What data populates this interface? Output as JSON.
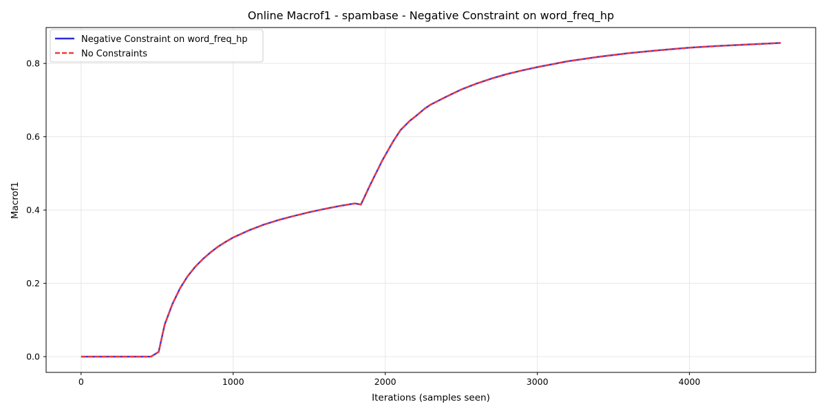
{
  "chart_data": {
    "type": "line",
    "title": "Online Macrof1 - spambase - Negative Constraint on word_freq_hp",
    "xlabel": "Iterations (samples seen)",
    "ylabel": "Macrof1",
    "xlim": [
      -230,
      4830
    ],
    "ylim": [
      -0.043,
      0.898
    ],
    "xticks": [
      0,
      1000,
      2000,
      3000,
      4000
    ],
    "xtick_labels": [
      "0",
      "1000",
      "2000",
      "3000",
      "4000"
    ],
    "yticks": [
      0.0,
      0.2,
      0.4,
      0.6,
      0.8
    ],
    "ytick_labels": [
      "0.0",
      "0.2",
      "0.4",
      "0.6",
      "0.8"
    ],
    "grid": true,
    "legend_position": "top-left",
    "x": [
      0,
      50,
      100,
      150,
      200,
      250,
      300,
      350,
      400,
      460,
      510,
      550,
      600,
      650,
      700,
      750,
      800,
      850,
      900,
      950,
      1000,
      1100,
      1200,
      1300,
      1400,
      1500,
      1600,
      1700,
      1800,
      1840,
      1900,
      1980,
      2050,
      2100,
      2160,
      2200,
      2260,
      2300,
      2400,
      2500,
      2600,
      2700,
      2800,
      2900,
      3000,
      3200,
      3400,
      3600,
      3800,
      4000,
      4200,
      4400,
      4600
    ],
    "series": [
      {
        "name": "Negative Constraint on word_freq_hp",
        "color": "#2c2cdc",
        "style": "solid",
        "values": [
          0.0,
          0.0,
          0.0,
          0.0,
          0.0,
          0.0,
          0.0,
          0.0,
          0.0,
          0.0,
          0.013,
          0.088,
          0.143,
          0.186,
          0.219,
          0.245,
          0.266,
          0.284,
          0.3,
          0.313,
          0.325,
          0.344,
          0.36,
          0.373,
          0.384,
          0.394,
          0.403,
          0.411,
          0.418,
          0.415,
          0.468,
          0.535,
          0.586,
          0.618,
          0.643,
          0.656,
          0.677,
          0.688,
          0.709,
          0.729,
          0.745,
          0.759,
          0.771,
          0.781,
          0.79,
          0.806,
          0.818,
          0.828,
          0.836,
          0.843,
          0.848,
          0.852,
          0.856
        ]
      },
      {
        "name": "No Constraints",
        "color": "#f03a3a",
        "style": "dashed",
        "values": [
          0.0,
          0.0,
          0.0,
          0.0,
          0.0,
          0.0,
          0.0,
          0.0,
          0.0,
          0.0,
          0.013,
          0.088,
          0.143,
          0.186,
          0.219,
          0.245,
          0.266,
          0.284,
          0.3,
          0.313,
          0.325,
          0.344,
          0.36,
          0.373,
          0.384,
          0.394,
          0.403,
          0.411,
          0.418,
          0.415,
          0.468,
          0.535,
          0.586,
          0.618,
          0.643,
          0.656,
          0.677,
          0.688,
          0.709,
          0.729,
          0.745,
          0.759,
          0.771,
          0.781,
          0.79,
          0.806,
          0.818,
          0.828,
          0.836,
          0.843,
          0.848,
          0.852,
          0.856
        ]
      }
    ]
  }
}
